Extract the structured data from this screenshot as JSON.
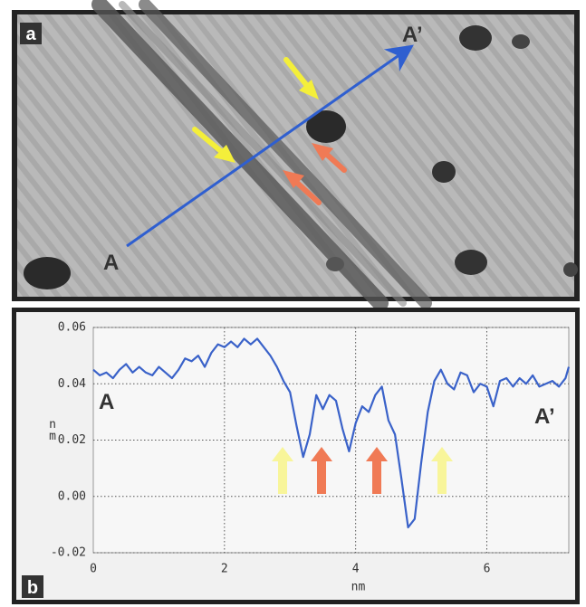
{
  "figure": {
    "panel_a": {
      "label": "a",
      "start_label": "A",
      "end_label": "A’"
    },
    "panel_b_label": "b"
  },
  "chart_data": {
    "type": "line",
    "x_label": "nm",
    "y_label": "nm",
    "annotations": [
      "A",
      "A’"
    ],
    "xlim": [
      0,
      7.25
    ],
    "ylim": [
      -0.02,
      0.06
    ],
    "xticks": [
      0,
      2,
      4,
      6
    ],
    "yticks": [
      0.06,
      0.04,
      0.02,
      {
        "value": 0,
        "label": "0.00"
      },
      -0.02
    ],
    "grid": true,
    "x": [
      0,
      0.1,
      0.2,
      0.3,
      0.4,
      0.5,
      0.6,
      0.7,
      0.8,
      0.9,
      1.0,
      1.1,
      1.2,
      1.3,
      1.4,
      1.5,
      1.6,
      1.7,
      1.8,
      1.9,
      2.0,
      2.1,
      2.2,
      2.3,
      2.4,
      2.5,
      2.6,
      2.7,
      2.8,
      2.9,
      3.0,
      3.1,
      3.2,
      3.3,
      3.4,
      3.5,
      3.6,
      3.7,
      3.8,
      3.9,
      4.0,
      4.1,
      4.2,
      4.3,
      4.4,
      4.5,
      4.6,
      4.7,
      4.8,
      4.9,
      5.0,
      5.1,
      5.2,
      5.3,
      5.4,
      5.5,
      5.6,
      5.7,
      5.8,
      5.9,
      6.0,
      6.1,
      6.2,
      6.3,
      6.4,
      6.5,
      6.6,
      6.7,
      6.8,
      6.9,
      7.0,
      7.1,
      7.2,
      7.25
    ],
    "series": [
      {
        "color": "#3a62c9",
        "values": [
          0.045,
          0.043,
          0.044,
          0.042,
          0.045,
          0.047,
          0.044,
          0.046,
          0.044,
          0.043,
          0.046,
          0.044,
          0.042,
          0.045,
          0.049,
          0.048,
          0.05,
          0.046,
          0.051,
          0.054,
          0.053,
          0.055,
          0.053,
          0.056,
          0.054,
          0.056,
          0.053,
          0.05,
          0.046,
          0.041,
          0.037,
          0.025,
          0.014,
          0.022,
          0.036,
          0.031,
          0.036,
          0.034,
          0.024,
          0.016,
          0.026,
          0.032,
          0.03,
          0.036,
          0.039,
          0.027,
          0.022,
          0.006,
          -0.011,
          -0.008,
          0.012,
          0.03,
          0.041,
          0.045,
          0.04,
          0.038,
          0.044,
          0.043,
          0.037,
          0.04,
          0.039,
          0.032,
          0.041,
          0.042,
          0.039,
          0.042,
          0.04,
          0.043,
          0.039,
          0.04,
          0.041,
          0.039,
          0.042,
          0.046
        ]
      }
    ]
  }
}
